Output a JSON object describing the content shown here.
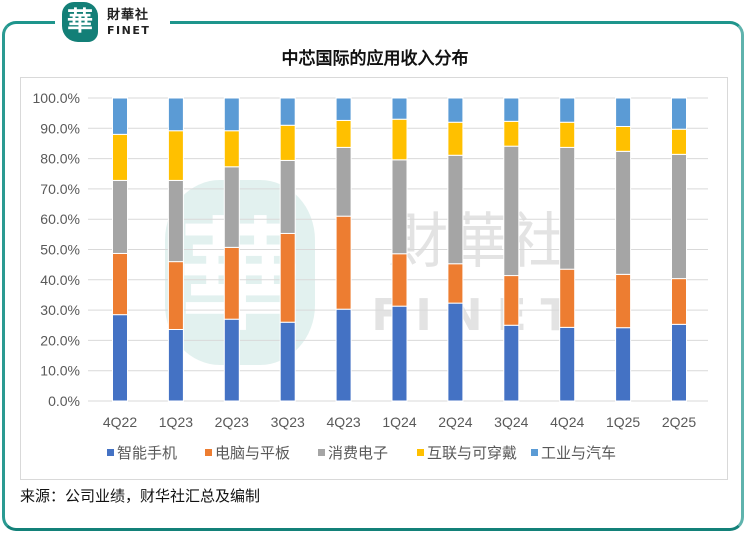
{
  "brand": {
    "logo_glyph": "華",
    "name_cn": "財華社",
    "name_en": "FINET",
    "watermark_glyph": "華",
    "watermark_cn": "財華社",
    "watermark_en": "FINET"
  },
  "source_note": "来源：公司业绩，财华社汇总及编制",
  "colors": {
    "frame": "#1a8a82",
    "series": [
      "#4472c4",
      "#ed7d31",
      "#a5a5a5",
      "#ffc000",
      "#5b9bd5"
    ]
  },
  "chart_data": {
    "type": "bar",
    "stacked": true,
    "title": "中芯国际的应用收入分布",
    "xlabel": "",
    "ylabel": "",
    "ylim": [
      0,
      100
    ],
    "yticks": [
      "0.0%",
      "10.0%",
      "20.0%",
      "30.0%",
      "40.0%",
      "50.0%",
      "60.0%",
      "70.0%",
      "80.0%",
      "90.0%",
      "100.0%"
    ],
    "grid": true,
    "legend_position": "bottom",
    "categories": [
      "4Q22",
      "1Q23",
      "2Q23",
      "3Q23",
      "4Q23",
      "1Q24",
      "2Q24",
      "3Q24",
      "4Q24",
      "1Q25",
      "2Q25"
    ],
    "series": [
      {
        "name": "智能手机",
        "color": "#4472c4",
        "values": [
          28.5,
          23.6,
          27.0,
          26.0,
          30.3,
          31.3,
          32.3,
          25.0,
          24.3,
          24.2,
          25.3
        ]
      },
      {
        "name": "电脑与平板",
        "color": "#ed7d31",
        "values": [
          20.2,
          22.4,
          23.7,
          29.3,
          30.7,
          17.3,
          13.0,
          16.4,
          19.2,
          17.6,
          15.1
        ]
      },
      {
        "name": "消费电子",
        "color": "#a5a5a5",
        "values": [
          24.1,
          26.8,
          26.6,
          24.1,
          22.7,
          31.0,
          35.8,
          42.7,
          40.2,
          40.6,
          41.0
        ]
      },
      {
        "name": "互联与可穿戴",
        "color": "#ffc000",
        "values": [
          15.2,
          16.4,
          11.9,
          11.6,
          8.9,
          13.4,
          10.9,
          8.2,
          8.3,
          8.2,
          8.3
        ]
      },
      {
        "name": "工业与汽车",
        "color": "#5b9bd5",
        "values": [
          12.0,
          10.8,
          10.8,
          9.0,
          7.4,
          7.0,
          8.0,
          7.7,
          8.0,
          9.4,
          10.3
        ]
      }
    ]
  }
}
